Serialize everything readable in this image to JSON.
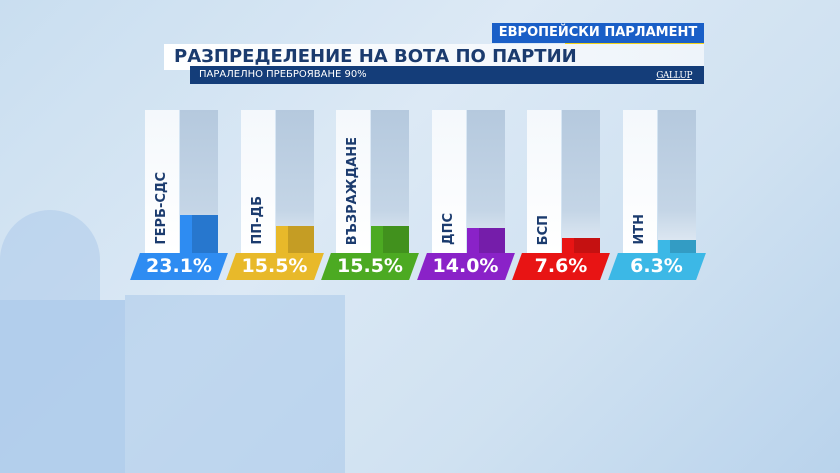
{
  "header": {
    "badge": "ЕВРОПЕЙСКИ ПАРЛАМЕНТ",
    "title": "РАЗПРЕДЕЛЕНИЕ НА ВОТА ПО ПАРТИИ",
    "subtitle": "ПАРАЛЕЛНО ПРЕБРОЯВАНЕ 90%",
    "logo": "GALLUP"
  },
  "chart_data": {
    "type": "bar",
    "categories": [
      "ГЕРБ-СДС",
      "ПП-ДБ",
      "ВЪЗРАЖДАНЕ",
      "ДПС",
      "БСП",
      "ИТН"
    ],
    "values": [
      23.1,
      15.5,
      15.5,
      14.0,
      7.6,
      6.3
    ],
    "labels": [
      "23.1%",
      "15.5%",
      "15.5%",
      "14.0%",
      "7.6%",
      "6.3%"
    ],
    "colors": [
      "#2e8cf2",
      "#e8b92a",
      "#4caa22",
      "#8a22c8",
      "#e81414",
      "#3cb8e6"
    ],
    "ylim": [
      0,
      100
    ]
  }
}
